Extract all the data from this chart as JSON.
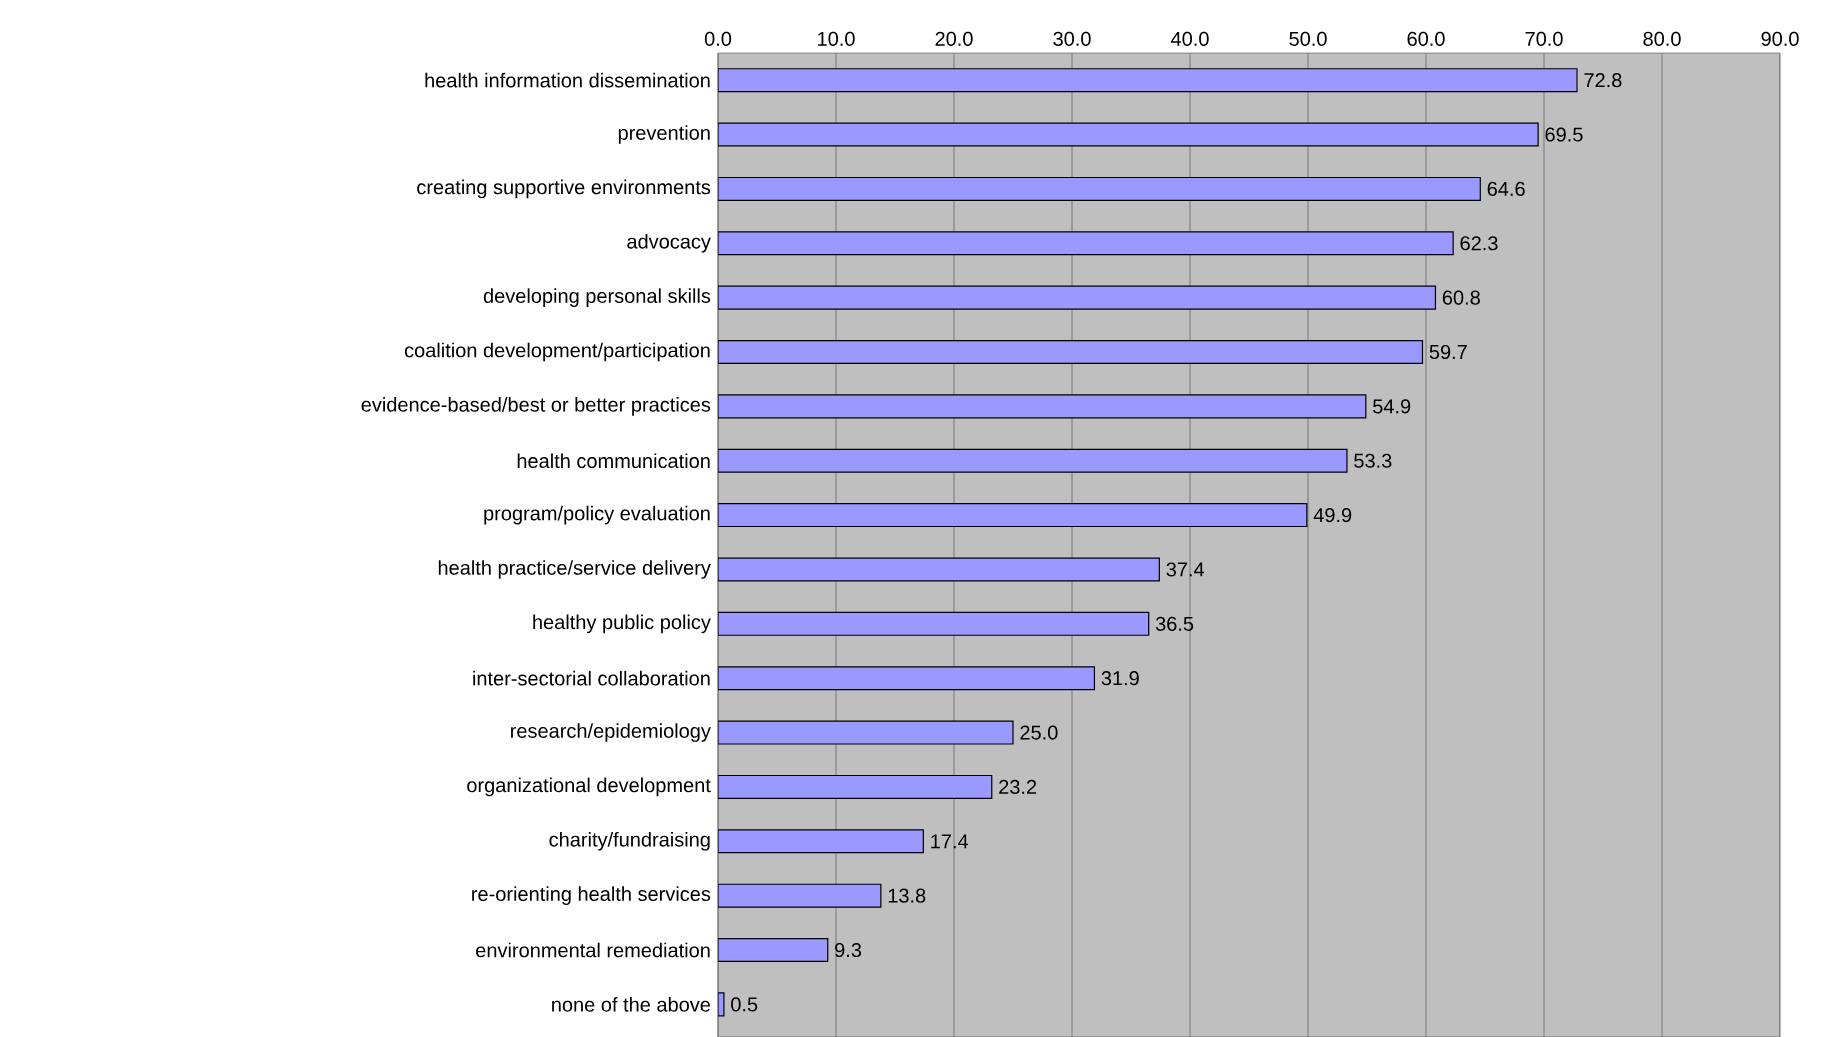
{
  "chart_data": {
    "type": "bar",
    "orientation": "horizontal",
    "color": "#9999ff",
    "categories": [
      "health information dissemination",
      "prevention",
      "creating supportive environments",
      "advocacy",
      "developing personal skills",
      "coalition development/participation",
      "evidence-based/best or better practices",
      "health communication",
      "program/policy evaluation",
      "health practice/service delivery",
      "healthy public policy",
      "inter-sectorial collaboration",
      "research/epidemiology",
      "organizational development",
      "charity/fundraising",
      "re-orienting health services",
      "environmental remediation",
      "none of the above"
    ],
    "values": [
      72.8,
      69.5,
      64.6,
      62.3,
      60.8,
      59.7,
      54.9,
      53.3,
      49.9,
      37.4,
      36.5,
      31.9,
      25.0,
      23.2,
      17.4,
      13.8,
      9.3,
      0.5
    ],
    "value_labels": [
      "72.8",
      "69.5",
      "64.6",
      "62.3",
      "60.8",
      "59.7",
      "54.9",
      "53.3",
      "49.9",
      "37.4",
      "36.5",
      "31.9",
      "25.0",
      "23.2",
      "17.4",
      "13.8",
      "9.3",
      "0.5"
    ],
    "xlim": [
      0,
      90
    ],
    "xticks": [
      {
        "value": 0,
        "label": "0.0"
      },
      {
        "value": 10,
        "label": "10.0"
      },
      {
        "value": 20,
        "label": "20.0"
      },
      {
        "value": 30,
        "label": "30.0"
      },
      {
        "value": 40,
        "label": "40.0"
      },
      {
        "value": 50,
        "label": "50.0"
      },
      {
        "value": 60,
        "label": "60.0"
      },
      {
        "value": 70,
        "label": "70.0"
      },
      {
        "value": 80,
        "label": "80.0"
      },
      {
        "value": 90,
        "label": "90.0"
      }
    ],
    "grid": "x"
  }
}
